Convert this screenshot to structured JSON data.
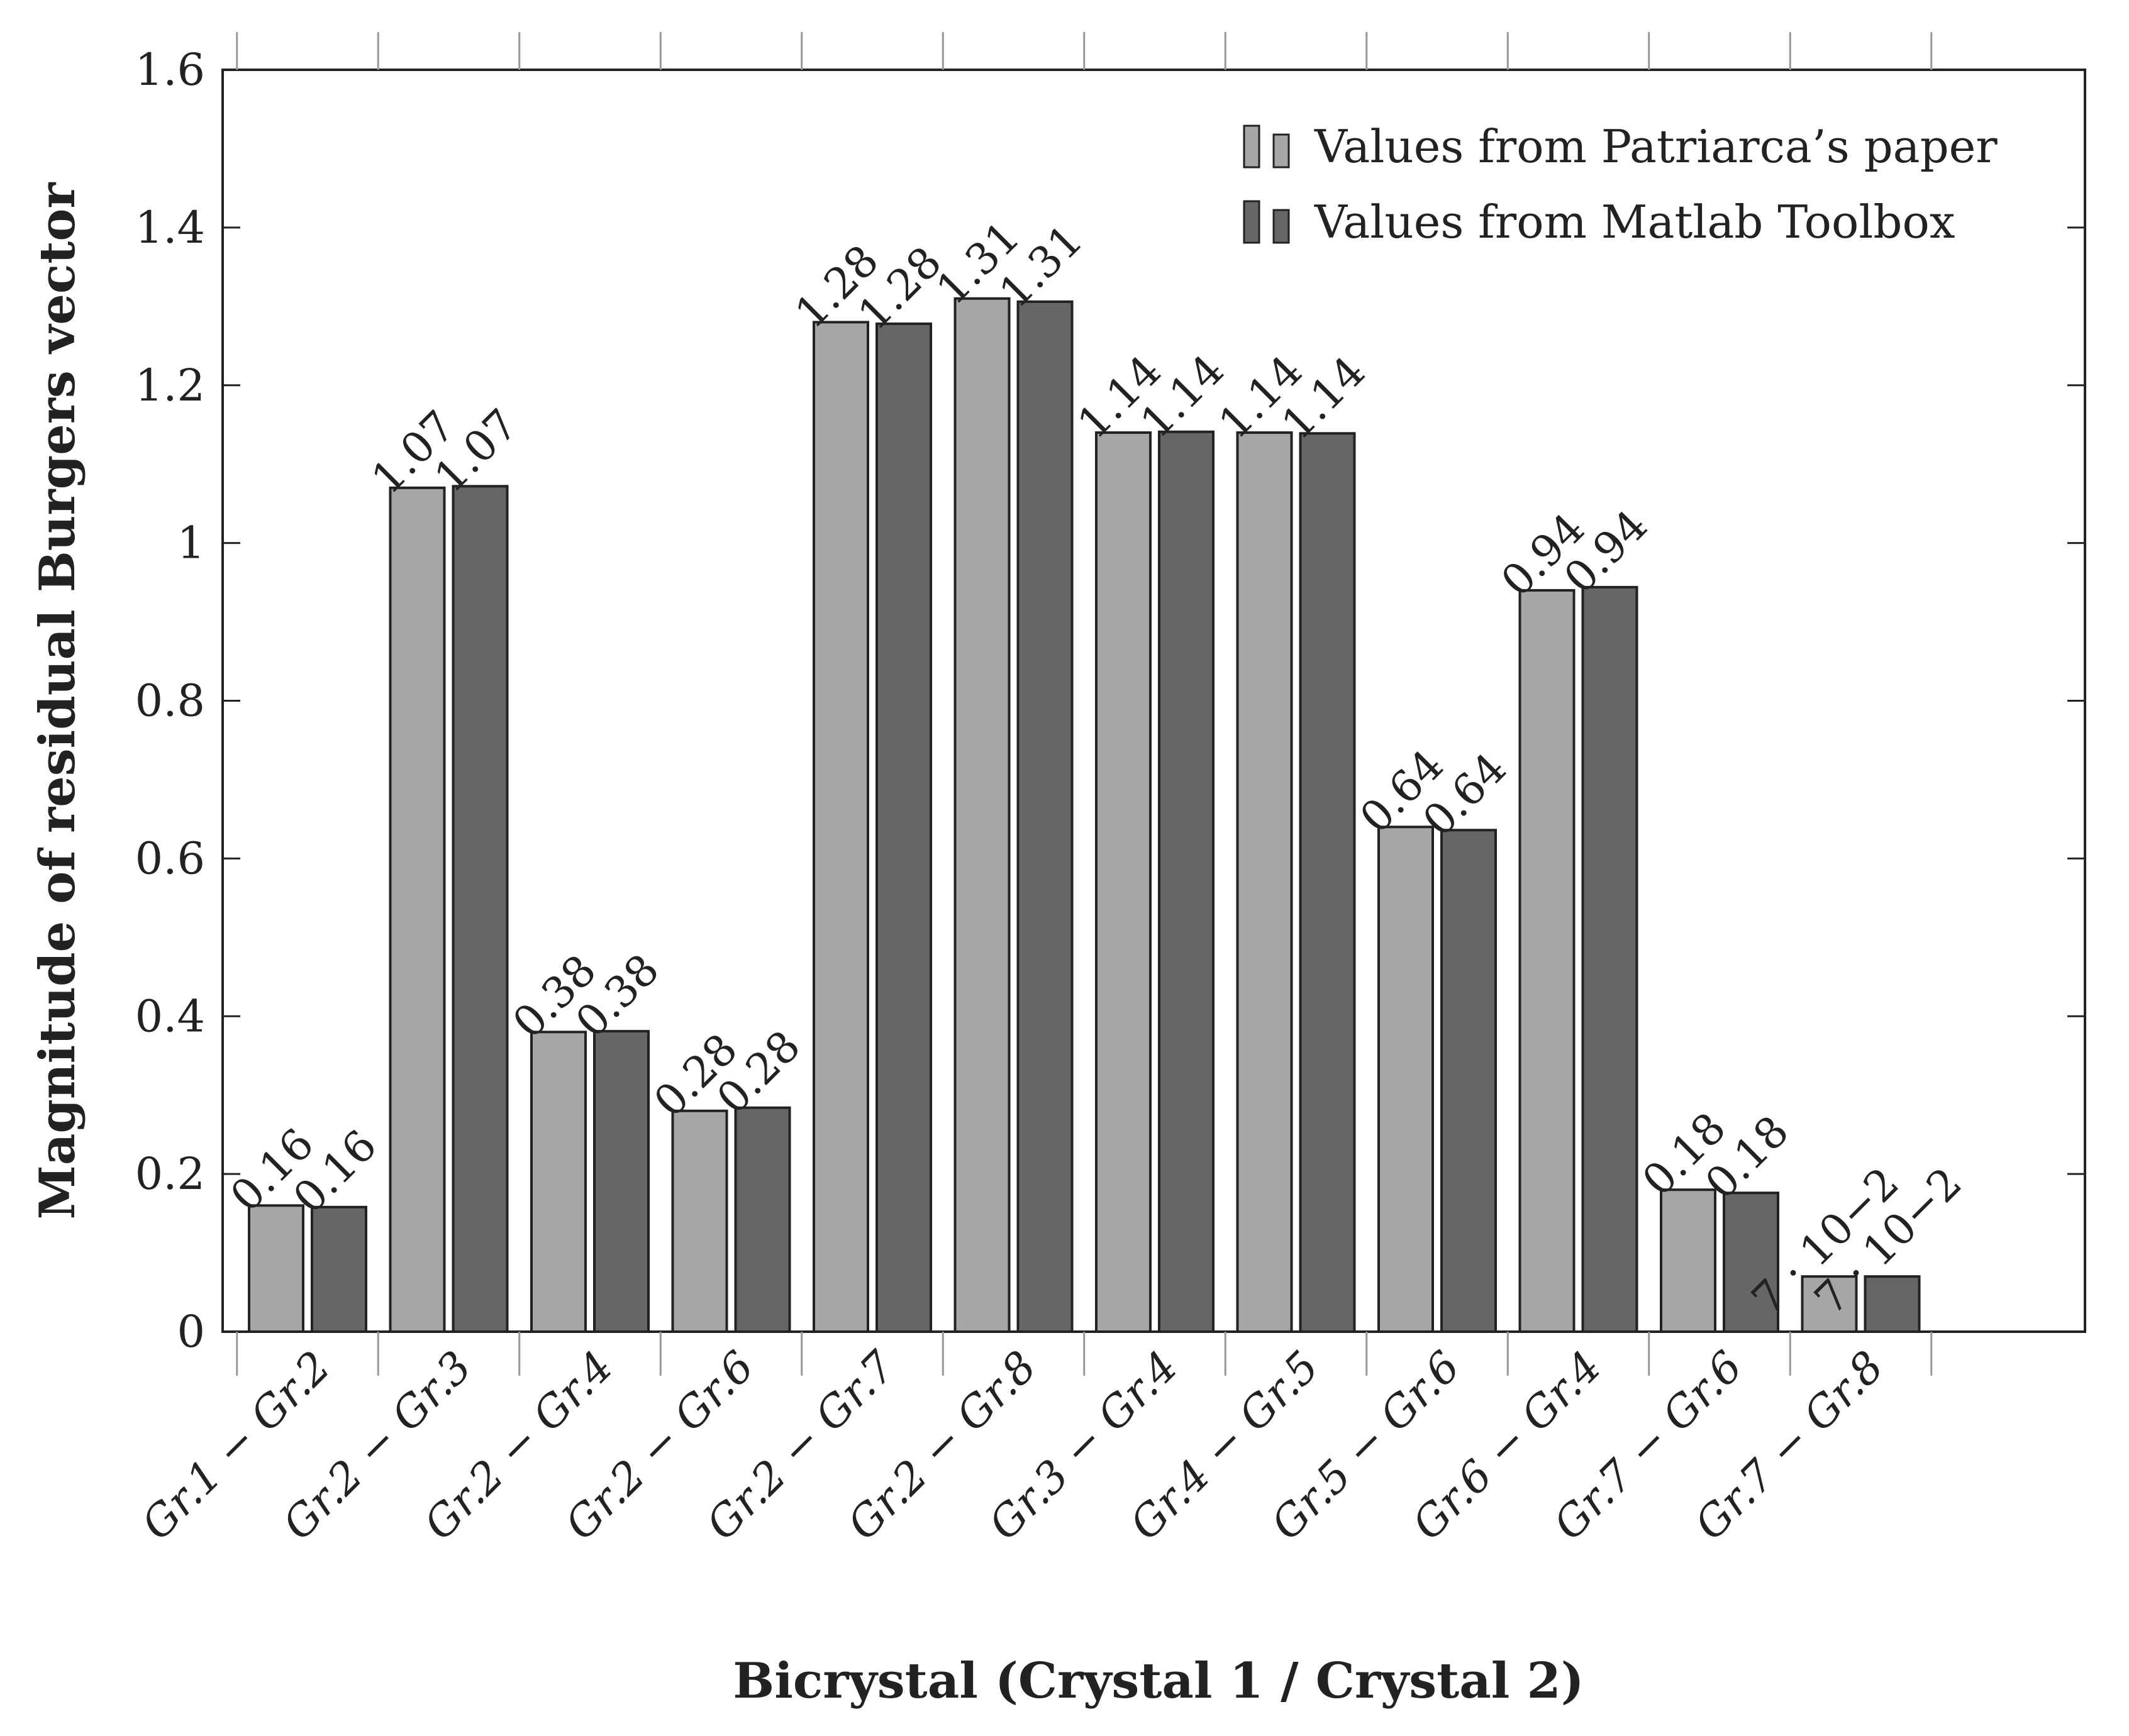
{
  "chart_data": {
    "type": "bar",
    "xlabel": "Bicrystal (Crystal 1 / Crystal 2)",
    "ylabel": "Magnitude of residual Burgers vector",
    "ylim": [
      0,
      1.6
    ],
    "yticks": [
      "0",
      "0.2",
      "0.4",
      "0.6",
      "0.8",
      "1",
      "1.2",
      "1.4",
      "1.6"
    ],
    "yticks_values": [
      0,
      0.2,
      0.4,
      0.6,
      0.8,
      1.0,
      1.2,
      1.4,
      1.6
    ],
    "categories": [
      "Gr.1 − Gr.2",
      "Gr.2 − Gr.3",
      "Gr.2 − Gr.4",
      "Gr.2 − Gr.6",
      "Gr.2 − Gr.7",
      "Gr.2 − Gr.8",
      "Gr.3 − Gr.4",
      "Gr.4 − Gr.5",
      "Gr.5 − Gr.6",
      "Gr.6 − Gr.4",
      "Gr.7 − Gr.6",
      "Gr.7 − Gr.8"
    ],
    "grid": false,
    "legend_position": "top-right",
    "series": [
      {
        "name": "Values from Patriarca’s paper",
        "color": "#a6a6a6",
        "values": [
          0.16,
          1.07,
          0.38,
          0.28,
          1.28,
          1.31,
          1.14,
          1.14,
          0.64,
          0.94,
          0.18,
          0.07
        ],
        "labels": [
          "0.16",
          "1.07",
          "0.38",
          "0.28",
          "1.28",
          "1.31",
          "1.14",
          "1.14",
          "0.64",
          "0.94",
          "0.18",
          "7 · 10−2"
        ]
      },
      {
        "name": "Values from Matlab Toolbox",
        "color": "#666666",
        "values": [
          0.158,
          1.072,
          0.381,
          0.284,
          1.278,
          1.306,
          1.141,
          1.139,
          0.636,
          0.944,
          0.176,
          0.07
        ],
        "labels": [
          "0.16",
          "1.07",
          "0.38",
          "0.28",
          "1.28",
          "1.31",
          "1.14",
          "1.14",
          "0.64",
          "0.94",
          "0.18",
          "7 · 10−2"
        ]
      }
    ]
  }
}
